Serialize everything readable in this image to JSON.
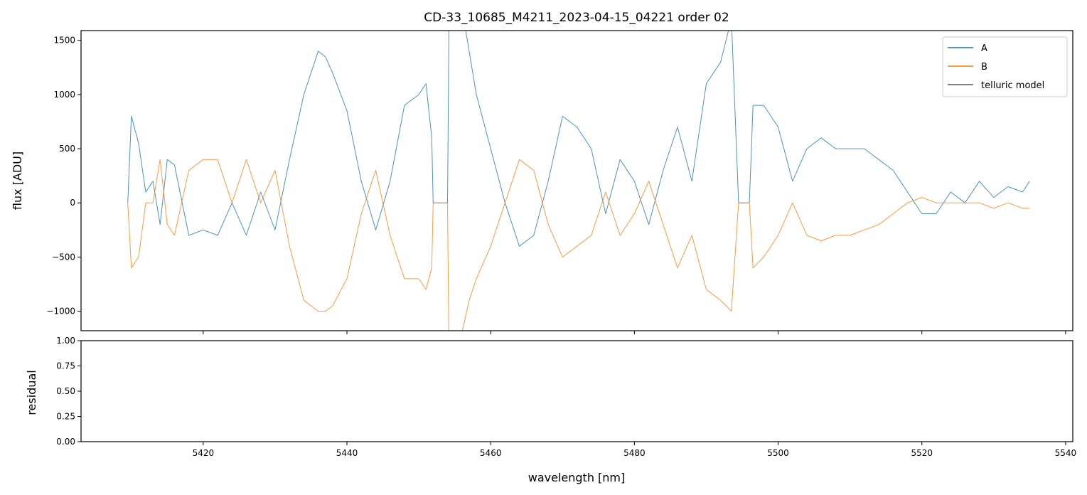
{
  "chart_data": [
    {
      "type": "line",
      "title": "CD-33_10685_M4211_2023-04-15_04221  order 02",
      "xlabel": "",
      "ylabel": "flux [ADU]",
      "xlim": [
        5403,
        5541
      ],
      "ylim": [
        -1180,
        1590
      ],
      "yticks": [
        -1000,
        -500,
        0,
        500,
        1000,
        1500
      ],
      "yticklabels": [
        "−1000",
        "−500",
        "0",
        "500",
        "1000",
        "1500"
      ],
      "grid": false,
      "legend_placement": "top-right",
      "series": [
        {
          "name": "A",
          "color": "#1f77b4",
          "x": [
            5409.5,
            5410,
            5411,
            5412,
            5413,
            5414,
            5415,
            5416,
            5418,
            5420,
            5422,
            5424,
            5426,
            5428,
            5430,
            5432,
            5434,
            5436,
            5437,
            5438,
            5440,
            5442,
            5444,
            5446,
            5448,
            5450,
            5451,
            5451.8,
            5452,
            5454,
            5454.2,
            5455,
            5456,
            5457,
            5458,
            5460,
            5462,
            5464,
            5466,
            5468,
            5470,
            5472,
            5474,
            5476,
            5478,
            5480,
            5482,
            5484,
            5486,
            5488,
            5490,
            5492,
            5493.5,
            5494.5,
            5495.5,
            5496,
            5496.5,
            5498,
            5500,
            5502,
            5504,
            5506,
            5508,
            5510,
            5512,
            5514,
            5516,
            5518,
            5520,
            5522,
            5524,
            5526,
            5528,
            5530,
            5532,
            5534,
            5535
          ],
          "values": [
            0,
            800,
            550,
            100,
            200,
            -200,
            400,
            350,
            -300,
            -250,
            -300,
            0,
            -300,
            100,
            -250,
            400,
            1000,
            1400,
            1350,
            1200,
            850,
            200,
            -250,
            200,
            900,
            1000,
            1100,
            600,
            0,
            0,
            1700,
            1600,
            1800,
            1400,
            1000,
            500,
            0,
            -400,
            -300,
            200,
            800,
            700,
            500,
            -100,
            400,
            200,
            -200,
            300,
            700,
            200,
            1100,
            1300,
            1700,
            0,
            0,
            0,
            900,
            900,
            700,
            200,
            500,
            600,
            500,
            500,
            500,
            400,
            300,
            100,
            -100,
            -100,
            100,
            0,
            200,
            50,
            150,
            100,
            200
          ]
        },
        {
          "name": "B",
          "color": "#ff7f0e",
          "x": [
            5409.5,
            5410,
            5411,
            5412,
            5413,
            5414,
            5415,
            5416,
            5418,
            5420,
            5422,
            5424,
            5426,
            5428,
            5430,
            5432,
            5434,
            5436,
            5437,
            5438,
            5440,
            5442,
            5444,
            5446,
            5448,
            5450,
            5451,
            5451.8,
            5452,
            5454,
            5454.2,
            5455,
            5456,
            5457,
            5458,
            5460,
            5462,
            5464,
            5466,
            5468,
            5470,
            5472,
            5474,
            5476,
            5478,
            5480,
            5482,
            5484,
            5486,
            5488,
            5490,
            5492,
            5493.5,
            5494.5,
            5495.5,
            5496,
            5496.5,
            5498,
            5500,
            5502,
            5504,
            5506,
            5508,
            5510,
            5512,
            5514,
            5516,
            5518,
            5520,
            5522,
            5524,
            5526,
            5528,
            5530,
            5532,
            5534,
            5535
          ],
          "values": [
            0,
            -600,
            -500,
            0,
            0,
            400,
            -200,
            -300,
            300,
            400,
            400,
            0,
            400,
            0,
            300,
            -400,
            -900,
            -1000,
            -1000,
            -950,
            -700,
            -100,
            300,
            -300,
            -700,
            -700,
            -800,
            -600,
            0,
            0,
            -1400,
            -1300,
            -1200,
            -900,
            -700,
            -400,
            0,
            400,
            300,
            -200,
            -500,
            -400,
            -300,
            100,
            -300,
            -100,
            200,
            -200,
            -600,
            -300,
            -800,
            -900,
            -1000,
            0,
            0,
            0,
            -600,
            -500,
            -300,
            0,
            -300,
            -350,
            -300,
            -300,
            -250,
            -200,
            -100,
            0,
            50,
            0,
            0,
            0,
            0,
            -50,
            0,
            -50,
            -50
          ]
        },
        {
          "name": "telluric model",
          "color": "#595959",
          "x": [],
          "values": []
        }
      ]
    },
    {
      "type": "line",
      "title": "",
      "xlabel": "wavelength [nm]",
      "ylabel": "residual",
      "xlim": [
        5403,
        5541
      ],
      "ylim": [
        0,
        1
      ],
      "xticks": [
        5420,
        5440,
        5460,
        5480,
        5500,
        5520,
        5540
      ],
      "xticklabels": [
        "5420",
        "5440",
        "5460",
        "5480",
        "5500",
        "5520",
        "5540"
      ],
      "yticks": [
        0,
        0.25,
        0.5,
        0.75,
        1
      ],
      "yticklabels": [
        "0.00",
        "0.25",
        "0.50",
        "0.75",
        "1.00"
      ],
      "grid": false,
      "series": []
    }
  ]
}
